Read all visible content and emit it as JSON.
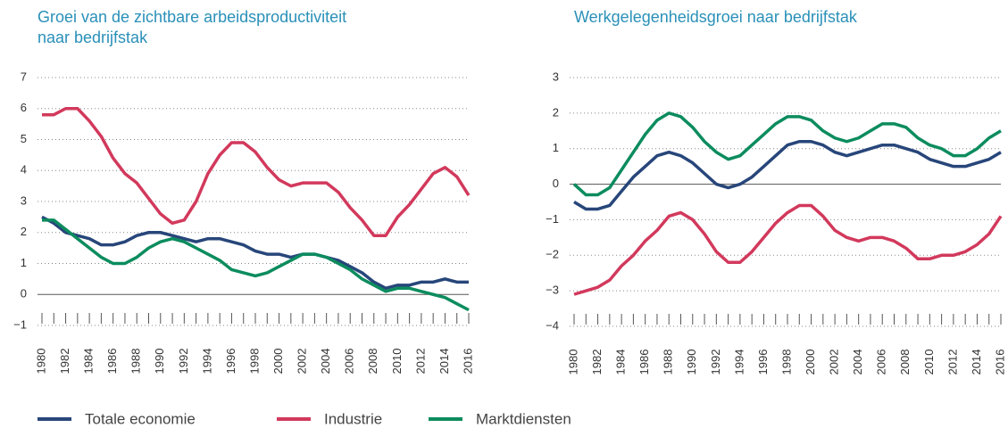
{
  "chart_data": [
    {
      "type": "line",
      "title": [
        "Groei van de zichtbare arbeidsproductiviteit",
        "naar bedrijfstak"
      ],
      "x": [
        1980,
        1981,
        1982,
        1983,
        1984,
        1985,
        1986,
        1987,
        1988,
        1989,
        1990,
        1991,
        1992,
        1993,
        1994,
        1995,
        1996,
        1997,
        1998,
        1999,
        2000,
        2001,
        2002,
        2003,
        2004,
        2005,
        2006,
        2007,
        2008,
        2009,
        2010,
        2011,
        2012,
        2013,
        2014,
        2015,
        2016
      ],
      "xlim": [
        1980,
        2016
      ],
      "xticks": [
        1980,
        1982,
        1984,
        1986,
        1988,
        1990,
        1992,
        1994,
        1996,
        1998,
        2000,
        2002,
        2004,
        2006,
        2008,
        2010,
        2012,
        2014,
        2016
      ],
      "ylim": [
        -1,
        7
      ],
      "yticks": [
        {
          "value": -1,
          "label": "−1"
        },
        0,
        1,
        2,
        3,
        4,
        5,
        6,
        7
      ],
      "grid": true,
      "series": [
        {
          "name": "Totale economie",
          "color": "#27467a",
          "values": [
            2.5,
            2.3,
            2.0,
            1.9,
            1.8,
            1.6,
            1.6,
            1.7,
            1.9,
            2.0,
            2.0,
            1.9,
            1.8,
            1.7,
            1.8,
            1.8,
            1.7,
            1.6,
            1.4,
            1.3,
            1.3,
            1.2,
            1.3,
            1.3,
            1.2,
            1.1,
            0.9,
            0.7,
            0.4,
            0.2,
            0.3,
            0.3,
            0.4,
            0.4,
            0.5,
            0.4,
            0.4
          ]
        },
        {
          "name": "Industrie",
          "color": "#d2395c",
          "values": [
            5.8,
            5.8,
            6.0,
            6.0,
            5.6,
            5.1,
            4.4,
            3.9,
            3.6,
            3.1,
            2.6,
            2.3,
            2.4,
            3.0,
            3.9,
            4.5,
            4.9,
            4.9,
            4.6,
            4.1,
            3.7,
            3.5,
            3.6,
            3.6,
            3.6,
            3.3,
            2.8,
            2.4,
            1.9,
            1.9,
            2.5,
            2.9,
            3.4,
            3.9,
            4.1,
            3.8,
            3.2
          ]
        },
        {
          "name": "Marktdiensten",
          "color": "#0c8c5e",
          "values": [
            2.4,
            2.4,
            2.1,
            1.8,
            1.5,
            1.2,
            1.0,
            1.0,
            1.2,
            1.5,
            1.7,
            1.8,
            1.7,
            1.5,
            1.3,
            1.1,
            0.8,
            0.7,
            0.6,
            0.7,
            0.9,
            1.1,
            1.3,
            1.3,
            1.2,
            1.0,
            0.8,
            0.5,
            0.3,
            0.1,
            0.2,
            0.2,
            0.1,
            0.0,
            -0.1,
            -0.3,
            -0.5
          ]
        }
      ]
    },
    {
      "type": "line",
      "title": [
        "Werkgelegenheidsgroei naar bedrijfstak"
      ],
      "x": [
        1980,
        1981,
        1982,
        1983,
        1984,
        1985,
        1986,
        1987,
        1988,
        1989,
        1990,
        1991,
        1992,
        1993,
        1994,
        1995,
        1996,
        1997,
        1998,
        1999,
        2000,
        2001,
        2002,
        2003,
        2004,
        2005,
        2006,
        2007,
        2008,
        2009,
        2010,
        2011,
        2012,
        2013,
        2014,
        2015,
        2016
      ],
      "xlim": [
        1980,
        2016
      ],
      "xticks": [
        1980,
        1982,
        1984,
        1986,
        1988,
        1990,
        1992,
        1994,
        1996,
        1998,
        2000,
        2002,
        2004,
        2006,
        2008,
        2010,
        2012,
        2014,
        2016
      ],
      "ylim": [
        -4,
        3
      ],
      "yticks": [
        {
          "value": -4,
          "label": "−4"
        },
        {
          "value": -3,
          "label": "−3"
        },
        {
          "value": -2,
          "label": "−2"
        },
        {
          "value": -1,
          "label": "−1"
        },
        0,
        1,
        2,
        3
      ],
      "grid": true,
      "series": [
        {
          "name": "Totale economie",
          "color": "#27467a",
          "values": [
            -0.5,
            -0.7,
            -0.7,
            -0.6,
            -0.2,
            0.2,
            0.5,
            0.8,
            0.9,
            0.8,
            0.6,
            0.3,
            0.0,
            -0.1,
            0.0,
            0.2,
            0.5,
            0.8,
            1.1,
            1.2,
            1.2,
            1.1,
            0.9,
            0.8,
            0.9,
            1.0,
            1.1,
            1.1,
            1.0,
            0.9,
            0.7,
            0.6,
            0.5,
            0.5,
            0.6,
            0.7,
            0.9
          ]
        },
        {
          "name": "Industrie",
          "color": "#d2395c",
          "values": [
            -3.1,
            -3.0,
            -2.9,
            -2.7,
            -2.3,
            -2.0,
            -1.6,
            -1.3,
            -0.9,
            -0.8,
            -1.0,
            -1.4,
            -1.9,
            -2.2,
            -2.2,
            -1.9,
            -1.5,
            -1.1,
            -0.8,
            -0.6,
            -0.6,
            -0.9,
            -1.3,
            -1.5,
            -1.6,
            -1.5,
            -1.5,
            -1.6,
            -1.8,
            -2.1,
            -2.1,
            -2.0,
            -2.0,
            -1.9,
            -1.7,
            -1.4,
            -0.9
          ]
        },
        {
          "name": "Marktdiensten",
          "color": "#0c8c5e",
          "values": [
            0.0,
            -0.3,
            -0.3,
            -0.1,
            0.4,
            0.9,
            1.4,
            1.8,
            2.0,
            1.9,
            1.6,
            1.2,
            0.9,
            0.7,
            0.8,
            1.1,
            1.4,
            1.7,
            1.9,
            1.9,
            1.8,
            1.5,
            1.3,
            1.2,
            1.3,
            1.5,
            1.7,
            1.7,
            1.6,
            1.3,
            1.1,
            1.0,
            0.8,
            0.8,
            1.0,
            1.3,
            1.5
          ]
        }
      ]
    }
  ]
}
